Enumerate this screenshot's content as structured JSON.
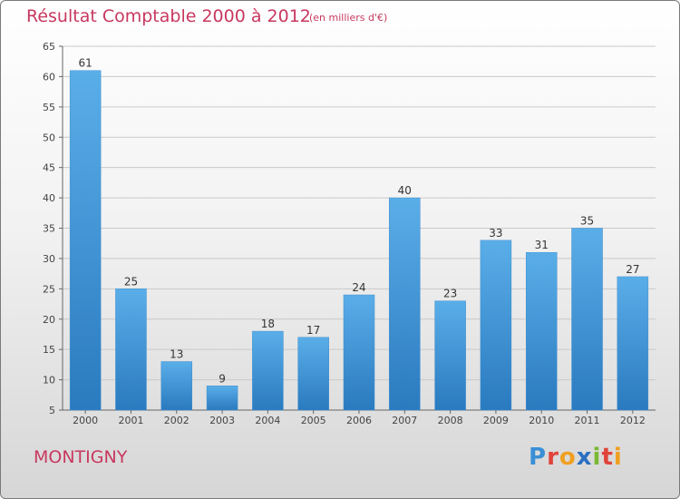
{
  "header": {
    "title": "Résultat Comptable 2000 à 2012",
    "subtitle": "(en milliers d'€)"
  },
  "footer": {
    "place": "MONTIGNY",
    "logo_text": "Proxiti"
  },
  "colors": {
    "title": "#c8385f",
    "bar_top": "#5aaee8",
    "bar_bottom": "#2a7abf"
  },
  "chart_data": {
    "type": "bar",
    "title": "Résultat Comptable 2000 à 2012",
    "subtitle": "(en milliers d'€)",
    "xlabel": "",
    "ylabel": "",
    "categories": [
      "2000",
      "2001",
      "2002",
      "2003",
      "2004",
      "2005",
      "2006",
      "2007",
      "2008",
      "2009",
      "2010",
      "2011",
      "2012"
    ],
    "values": [
      61,
      25,
      13,
      9,
      18,
      17,
      24,
      40,
      23,
      33,
      31,
      35,
      27
    ],
    "ylim": [
      5,
      65
    ],
    "yticks": [
      5,
      10,
      15,
      20,
      25,
      30,
      35,
      40,
      45,
      50,
      55,
      60,
      65
    ],
    "grid": true,
    "legend": "none"
  }
}
